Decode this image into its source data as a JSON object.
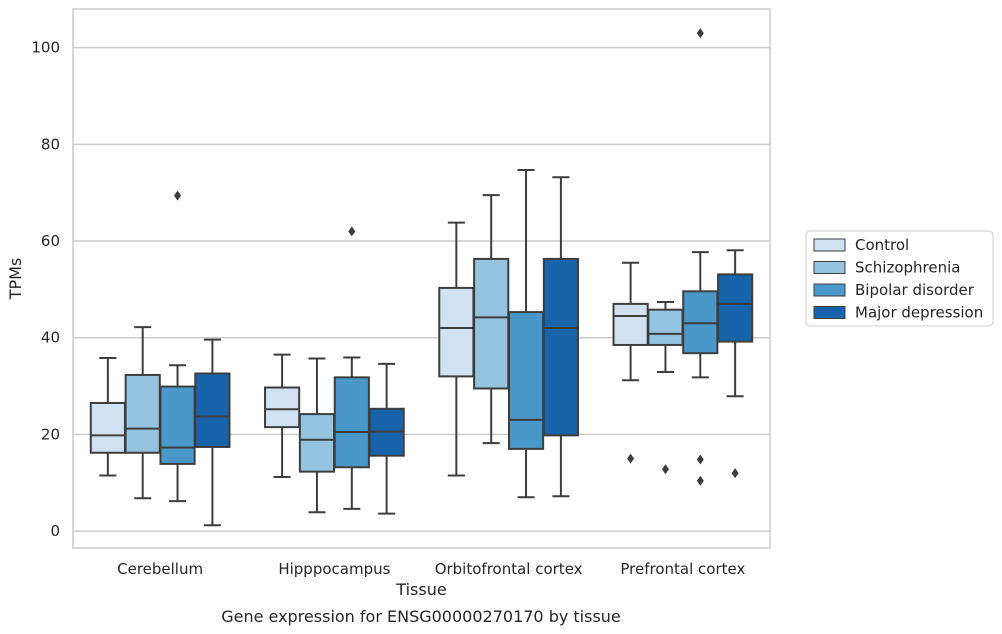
{
  "chart_data": {
    "type": "boxplot",
    "title": "",
    "caption": "Gene expression for ENSG00000270170 by tissue",
    "xlabel": "Tissue",
    "ylabel": "TPMs",
    "ylim": [
      -3.5,
      108
    ],
    "yticks": [
      0,
      20,
      40,
      60,
      80,
      100
    ],
    "grid": true,
    "legend_position": "right",
    "categories": [
      "Cerebellum",
      "Hipppocampus",
      "Orbitofrontal cortex",
      "Prefrontal cortex"
    ],
    "series": [
      {
        "name": "Control",
        "color": "#d0e1f2",
        "boxes": [
          {
            "whislo": 11.5,
            "q1": 16.2,
            "med": 19.8,
            "q3": 26.5,
            "whishi": 35.8,
            "fliers": []
          },
          {
            "whislo": 11.2,
            "q1": 21.5,
            "med": 25.2,
            "q3": 29.7,
            "whishi": 36.5,
            "fliers": []
          },
          {
            "whislo": 11.5,
            "q1": 32.0,
            "med": 42.0,
            "q3": 50.3,
            "whishi": 63.8,
            "fliers": []
          },
          {
            "whislo": 31.2,
            "q1": 38.5,
            "med": 44.5,
            "q3": 47.0,
            "whishi": 55.5,
            "fliers": [
              15.0
            ]
          }
        ]
      },
      {
        "name": "Schizophrenia",
        "color": "#94c4df",
        "boxes": [
          {
            "whislo": 6.8,
            "q1": 16.2,
            "med": 21.2,
            "q3": 32.3,
            "whishi": 42.2,
            "fliers": []
          },
          {
            "whislo": 3.9,
            "q1": 12.3,
            "med": 18.9,
            "q3": 24.2,
            "whishi": 35.7,
            "fliers": []
          },
          {
            "whislo": 18.2,
            "q1": 29.5,
            "med": 44.2,
            "q3": 56.3,
            "whishi": 69.5,
            "fliers": []
          },
          {
            "whislo": 32.9,
            "q1": 38.5,
            "med": 40.8,
            "q3": 45.8,
            "whishi": 47.4,
            "fliers": [
              12.8
            ]
          }
        ]
      },
      {
        "name": "Bipolar disorder",
        "color": "#4a98c9",
        "boxes": [
          {
            "whislo": 6.2,
            "q1": 13.9,
            "med": 17.3,
            "q3": 29.9,
            "whishi": 34.3,
            "fliers": [
              69.4
            ]
          },
          {
            "whislo": 4.6,
            "q1": 13.2,
            "med": 20.5,
            "q3": 31.8,
            "whishi": 35.9,
            "fliers": [
              62.0
            ]
          },
          {
            "whislo": 7.0,
            "q1": 17.0,
            "med": 23.0,
            "q3": 45.3,
            "whishi": 74.7,
            "fliers": []
          },
          {
            "whislo": 31.8,
            "q1": 36.8,
            "med": 43.0,
            "q3": 49.6,
            "whishi": 57.7,
            "fliers": [
              14.8,
              10.4,
              103.0
            ]
          }
        ]
      },
      {
        "name": "Major depression",
        "color": "#1764ab",
        "boxes": [
          {
            "whislo": 1.2,
            "q1": 17.4,
            "med": 23.7,
            "q3": 32.6,
            "whishi": 39.6,
            "fliers": []
          },
          {
            "whislo": 3.6,
            "q1": 15.6,
            "med": 20.6,
            "q3": 25.3,
            "whishi": 34.6,
            "fliers": []
          },
          {
            "whislo": 7.2,
            "q1": 19.8,
            "med": 42.0,
            "q3": 56.3,
            "whishi": 73.2,
            "fliers": []
          },
          {
            "whislo": 27.9,
            "q1": 39.2,
            "med": 47.0,
            "q3": 53.1,
            "whishi": 58.1,
            "fliers": [
              12.0
            ]
          }
        ]
      }
    ]
  }
}
